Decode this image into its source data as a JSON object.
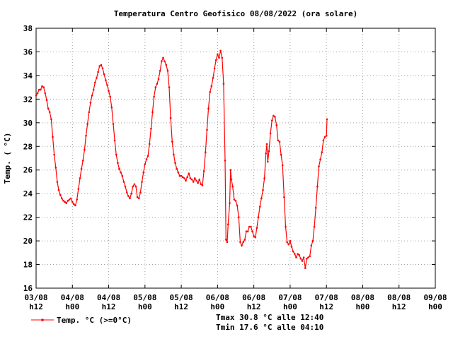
{
  "chart_data": {
    "type": "line",
    "title": "Temperatura Centro Geofisico 08/08/2022 (ora solare)",
    "ylabel": "Temp. ( °C)",
    "xlabel": "",
    "ylim": [
      16,
      38
    ],
    "yticks": [
      16,
      18,
      20,
      22,
      24,
      26,
      28,
      30,
      32,
      34,
      36,
      38
    ],
    "x_range_hours": [
      0,
      132
    ],
    "xticks": [
      {
        "h": 0,
        "date": "03/08",
        "hour": "h12"
      },
      {
        "h": 12,
        "date": "04/08",
        "hour": "h00"
      },
      {
        "h": 24,
        "date": "04/08",
        "hour": "h12"
      },
      {
        "h": 36,
        "date": "05/08",
        "hour": "h00"
      },
      {
        "h": 48,
        "date": "05/08",
        "hour": "h12"
      },
      {
        "h": 60,
        "date": "06/08",
        "hour": "h00"
      },
      {
        "h": 72,
        "date": "06/08",
        "hour": "h12"
      },
      {
        "h": 84,
        "date": "07/08",
        "hour": "h00"
      },
      {
        "h": 96,
        "date": "07/08",
        "hour": "h12"
      },
      {
        "h": 108,
        "date": "08/08",
        "hour": "h00"
      },
      {
        "h": 120,
        "date": "08/08",
        "hour": "h12"
      },
      {
        "h": 132,
        "date": "09/08",
        "hour": "h00"
      }
    ],
    "grid": true,
    "legend_position": "bottom-left",
    "series": [
      {
        "name": "Temp. °C (>=0°C)",
        "color": "#ff0000",
        "points": [
          [
            0,
            32.3
          ],
          [
            0.5,
            32.5
          ],
          [
            1,
            32.8
          ],
          [
            1.5,
            32.8
          ],
          [
            2,
            33.1
          ],
          [
            2.5,
            33.0
          ],
          [
            3,
            32.5
          ],
          [
            3.5,
            31.9
          ],
          [
            4,
            31.2
          ],
          [
            4.5,
            30.9
          ],
          [
            5,
            30.3
          ],
          [
            5.5,
            28.8
          ],
          [
            6,
            27.3
          ],
          [
            6.5,
            26.2
          ],
          [
            7,
            25.0
          ],
          [
            7.5,
            24.3
          ],
          [
            8,
            23.9
          ],
          [
            8.5,
            23.6
          ],
          [
            9,
            23.4
          ],
          [
            9.5,
            23.3
          ],
          [
            10,
            23.2
          ],
          [
            10.5,
            23.4
          ],
          [
            11,
            23.5
          ],
          [
            11.5,
            23.6
          ],
          [
            12,
            23.3
          ],
          [
            12.5,
            23.1
          ],
          [
            13,
            23.0
          ],
          [
            13.5,
            23.5
          ],
          [
            14,
            24.4
          ],
          [
            14.5,
            25.3
          ],
          [
            15,
            26.1
          ],
          [
            15.5,
            26.8
          ],
          [
            16,
            27.7
          ],
          [
            16.5,
            28.9
          ],
          [
            17,
            29.9
          ],
          [
            17.5,
            30.9
          ],
          [
            18,
            31.7
          ],
          [
            18.5,
            32.3
          ],
          [
            19,
            32.8
          ],
          [
            19.5,
            33.4
          ],
          [
            20,
            33.8
          ],
          [
            20.5,
            34.3
          ],
          [
            21,
            34.8
          ],
          [
            21.5,
            34.9
          ],
          [
            22,
            34.6
          ],
          [
            22.5,
            34.1
          ],
          [
            23,
            33.6
          ],
          [
            23.5,
            33.2
          ],
          [
            24,
            32.7
          ],
          [
            24.5,
            32.2
          ],
          [
            25,
            31.3
          ],
          [
            25.5,
            29.9
          ],
          [
            26,
            28.5
          ],
          [
            26.5,
            27.3
          ],
          [
            27,
            26.6
          ],
          [
            27.5,
            26.1
          ],
          [
            28,
            25.8
          ],
          [
            28.5,
            25.5
          ],
          [
            29,
            25.0
          ],
          [
            29.5,
            24.6
          ],
          [
            30,
            24.1
          ],
          [
            30.5,
            23.8
          ],
          [
            31,
            23.6
          ],
          [
            31.5,
            24.0
          ],
          [
            32,
            24.6
          ],
          [
            32.5,
            24.8
          ],
          [
            33,
            24.6
          ],
          [
            33.5,
            23.7
          ],
          [
            34,
            23.6
          ],
          [
            34.5,
            24.1
          ],
          [
            35,
            25.0
          ],
          [
            35.5,
            25.8
          ],
          [
            36,
            26.5
          ],
          [
            36.5,
            26.9
          ],
          [
            37,
            27.2
          ],
          [
            37.5,
            28.2
          ],
          [
            38,
            29.5
          ],
          [
            38.5,
            30.9
          ],
          [
            39,
            32.2
          ],
          [
            39.5,
            33.0
          ],
          [
            40,
            33.3
          ],
          [
            40.5,
            33.7
          ],
          [
            41,
            34.4
          ],
          [
            41.5,
            35.2
          ],
          [
            42,
            35.5
          ],
          [
            42.5,
            35.2
          ],
          [
            43,
            34.9
          ],
          [
            43.5,
            34.4
          ],
          [
            44,
            33.0
          ],
          [
            44.5,
            30.4
          ],
          [
            45,
            28.4
          ],
          [
            45.5,
            27.3
          ],
          [
            46,
            26.6
          ],
          [
            46.5,
            26.1
          ],
          [
            47,
            25.8
          ],
          [
            47.5,
            25.5
          ],
          [
            48,
            25.5
          ],
          [
            48.5,
            25.4
          ],
          [
            49,
            25.3
          ],
          [
            49.5,
            25.1
          ],
          [
            50,
            25.4
          ],
          [
            50.5,
            25.7
          ],
          [
            51,
            25.3
          ],
          [
            51.5,
            25.2
          ],
          [
            52,
            25.0
          ],
          [
            52.5,
            25.3
          ],
          [
            53,
            25.1
          ],
          [
            53.5,
            24.9
          ],
          [
            54,
            25.2
          ],
          [
            54.5,
            24.8
          ],
          [
            55,
            24.7
          ],
          [
            55.5,
            25.9
          ],
          [
            56,
            27.5
          ],
          [
            56.5,
            29.4
          ],
          [
            57,
            31.2
          ],
          [
            57.5,
            32.6
          ],
          [
            58,
            33.1
          ],
          [
            58.5,
            33.8
          ],
          [
            59,
            34.6
          ],
          [
            59.5,
            35.3
          ],
          [
            60,
            35.8
          ],
          [
            60.5,
            35.5
          ],
          [
            61,
            36.1
          ],
          [
            61.5,
            35.5
          ],
          [
            62,
            33.3
          ],
          [
            62.5,
            26.8
          ],
          [
            62.8,
            20.1
          ],
          [
            63.2,
            19.9
          ],
          [
            63.5,
            21.4
          ],
          [
            64,
            23.2
          ],
          [
            64.3,
            26.0
          ],
          [
            64.6,
            25.2
          ],
          [
            65,
            24.6
          ],
          [
            65.5,
            23.5
          ],
          [
            66,
            23.4
          ],
          [
            66.5,
            23.0
          ],
          [
            67,
            22.0
          ],
          [
            67.5,
            19.9
          ],
          [
            68,
            19.6
          ],
          [
            68.5,
            19.9
          ],
          [
            69,
            20.1
          ],
          [
            69.5,
            20.8
          ],
          [
            70,
            20.8
          ],
          [
            70.5,
            21.2
          ],
          [
            71,
            21.2
          ],
          [
            71.5,
            20.8
          ],
          [
            72,
            20.4
          ],
          [
            72.5,
            20.3
          ],
          [
            73,
            21.1
          ],
          [
            73.5,
            22.0
          ],
          [
            74,
            22.9
          ],
          [
            74.5,
            23.6
          ],
          [
            75,
            24.3
          ],
          [
            75.5,
            25.3
          ],
          [
            76,
            27.4
          ],
          [
            76.3,
            28.2
          ],
          [
            76.6,
            26.7
          ],
          [
            77,
            27.6
          ],
          [
            77.5,
            29.1
          ],
          [
            78,
            30.2
          ],
          [
            78.5,
            30.6
          ],
          [
            79,
            30.5
          ],
          [
            79.5,
            29.8
          ],
          [
            80,
            28.5
          ],
          [
            80.5,
            28.4
          ],
          [
            81,
            27.3
          ],
          [
            81.5,
            26.4
          ],
          [
            82,
            23.7
          ],
          [
            82.5,
            21.2
          ],
          [
            83,
            19.9
          ],
          [
            83.5,
            19.7
          ],
          [
            84,
            20.0
          ],
          [
            84.5,
            19.5
          ],
          [
            85,
            19.1
          ],
          [
            85.5,
            18.9
          ],
          [
            86,
            18.6
          ],
          [
            86.5,
            18.9
          ],
          [
            87,
            18.8
          ],
          [
            87.5,
            18.5
          ],
          [
            88,
            18.3
          ],
          [
            88.5,
            18.6
          ],
          [
            89,
            17.7
          ],
          [
            89.5,
            18.5
          ],
          [
            90,
            18.6
          ],
          [
            90.5,
            18.7
          ],
          [
            91,
            19.6
          ],
          [
            91.5,
            20.0
          ],
          [
            92,
            21.2
          ],
          [
            92.5,
            22.8
          ],
          [
            93,
            24.6
          ],
          [
            93.5,
            26.3
          ],
          [
            94,
            26.9
          ],
          [
            94.5,
            27.5
          ],
          [
            95,
            28.5
          ],
          [
            95.5,
            28.8
          ],
          [
            96,
            28.9
          ],
          [
            96.2,
            30.3
          ]
        ]
      }
    ],
    "legend": {
      "label": "Temp. °C (>=0°C)"
    },
    "annotations": [
      "Tmax 30.8 °C alle 12:40",
      "Tmin 17.6 °C alle 04:10"
    ]
  }
}
